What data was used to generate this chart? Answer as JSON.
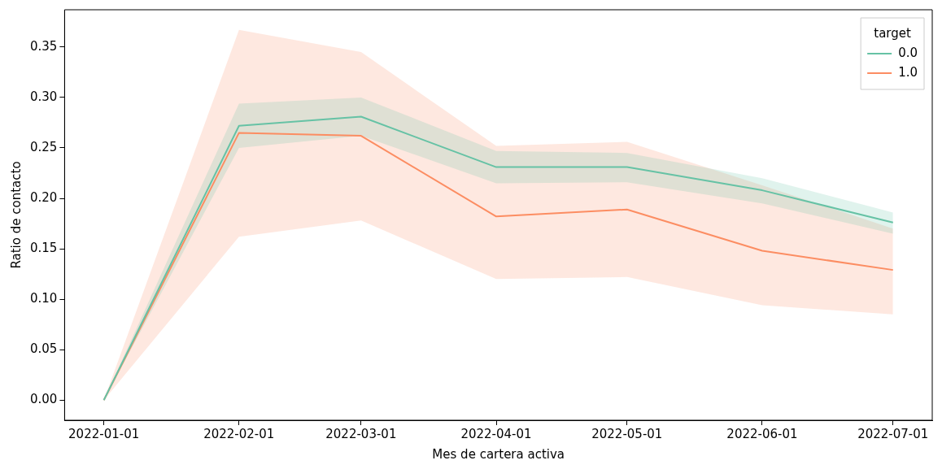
{
  "chart_data": {
    "type": "line",
    "xlabel": "Mes de cartera activa",
    "ylabel": "Ratio de contacto",
    "legend_title": "target",
    "legend": "top right",
    "grid": false,
    "marker": "none",
    "line_style": "solid",
    "x": [
      "2022-01-01",
      "2022-02-01",
      "2022-03-01",
      "2022-04-01",
      "2022-05-01",
      "2022-06-01",
      "2022-07-01"
    ],
    "xlim": [
      "2021-12-23",
      "2022-07-10"
    ],
    "xticks": [
      "2022-01-01",
      "2022-02-01",
      "2022-03-01",
      "2022-04-01",
      "2022-05-01",
      "2022-06-01",
      "2022-07-01"
    ],
    "ylim": [
      -0.02,
      0.387
    ],
    "yticks": [
      {
        "value": 0,
        "label": "0.00"
      },
      {
        "value": 0.05,
        "label": "0.05"
      },
      {
        "value": 0.1,
        "label": "0.10"
      },
      {
        "value": 0.15,
        "label": "0.15"
      },
      {
        "value": 0.2,
        "label": "0.20"
      },
      {
        "value": 0.25,
        "label": "0.25"
      },
      {
        "value": 0.3,
        "label": "0.30"
      },
      {
        "value": 0.35,
        "label": "0.35"
      }
    ],
    "series": [
      {
        "name": "0.0",
        "color": "#66c2a5",
        "values": [
          0,
          0.272,
          0.281,
          0.231,
          0.231,
          0.208,
          0.176
        ],
        "lower": [
          0,
          0.25,
          0.262,
          0.215,
          0.216,
          0.195,
          0.165
        ],
        "upper": [
          0,
          0.294,
          0.3,
          0.247,
          0.245,
          0.22,
          0.186
        ]
      },
      {
        "name": "1.0",
        "color": "#fc8d62",
        "values": [
          0,
          0.265,
          0.262,
          0.182,
          0.189,
          0.148,
          0.129
        ],
        "lower": [
          0,
          0.162,
          0.178,
          0.12,
          0.122,
          0.094,
          0.085
        ],
        "upper": [
          0,
          0.367,
          0.345,
          0.252,
          0.256,
          0.213,
          0.17
        ]
      }
    ]
  }
}
